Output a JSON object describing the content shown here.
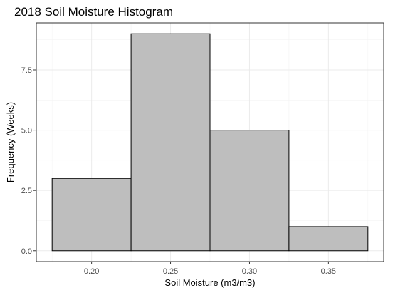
{
  "chart_data": {
    "type": "bar",
    "title": "2018 Soil Moisture Histogram",
    "xlabel": "Soil Moisture (m3/m3)",
    "ylabel": "Frequency (Weeks)",
    "bins": [
      {
        "start": 0.175,
        "end": 0.225,
        "count": 3
      },
      {
        "start": 0.225,
        "end": 0.275,
        "count": 9
      },
      {
        "start": 0.275,
        "end": 0.325,
        "count": 5
      },
      {
        "start": 0.325,
        "end": 0.375,
        "count": 1
      }
    ],
    "xlim": [
      0.165,
      0.385
    ],
    "ylim": [
      -0.45,
      9.45
    ],
    "x_ticks": [
      0.2,
      0.25,
      0.3,
      0.35
    ],
    "x_tick_labels": [
      "0.20",
      "0.25",
      "0.30",
      "0.35"
    ],
    "y_ticks": [
      0.0,
      2.5,
      5.0,
      7.5
    ],
    "y_tick_labels": [
      "0.0",
      "2.5",
      "5.0",
      "7.5"
    ],
    "grid": true,
    "colors": {
      "bar_fill": "#bebebe",
      "bar_stroke": "#000000"
    }
  }
}
